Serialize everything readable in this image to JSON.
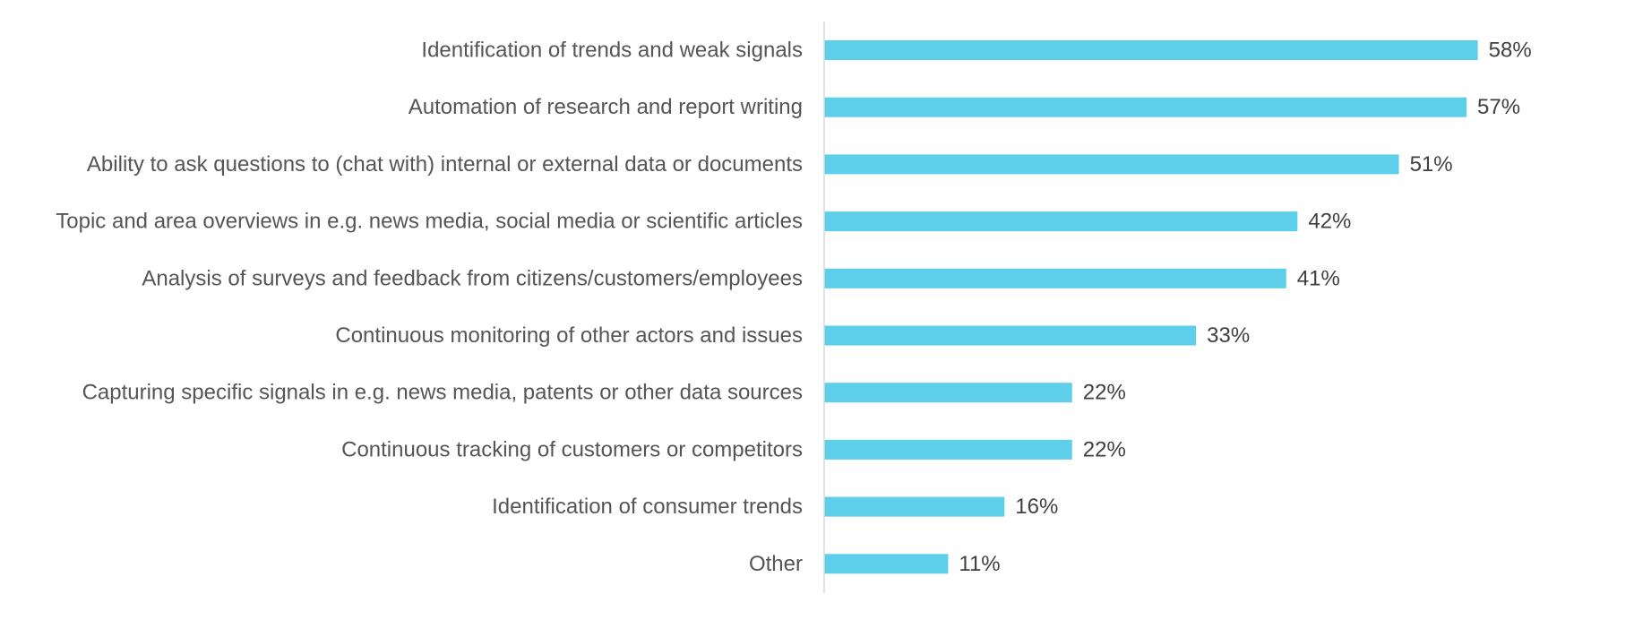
{
  "chart_data": {
    "type": "bar",
    "orientation": "horizontal",
    "title": "",
    "xlabel": "",
    "ylabel": "",
    "categories": [
      "Identification of trends and weak signals",
      "Automation of research and report writing",
      "Ability to ask questions to (chat with) internal or external data or documents",
      "Topic and area overviews in e.g. news media, social media or scientific articles",
      "Analysis of surveys and feedback from citizens/customers/employees",
      "Continuous monitoring of other actors and issues",
      "Capturing specific signals in e.g. news media, patents or other data sources",
      "Continuous tracking of customers or competitors",
      "Identification of consumer trends",
      "Other"
    ],
    "values": [
      58,
      57,
      51,
      42,
      41,
      33,
      22,
      22,
      16,
      11
    ],
    "value_labels": [
      "58%",
      "57%",
      "51%",
      "42%",
      "41%",
      "33%",
      "22%",
      "22%",
      "16%",
      "11%"
    ],
    "unit": "%",
    "xlim": [
      0,
      100
    ],
    "grid": false,
    "legend": "none",
    "colors": {
      "bar": "#5ecfeb",
      "axis": "#d9d9d9",
      "category_text": "#555555",
      "value_text": "#404040"
    }
  }
}
